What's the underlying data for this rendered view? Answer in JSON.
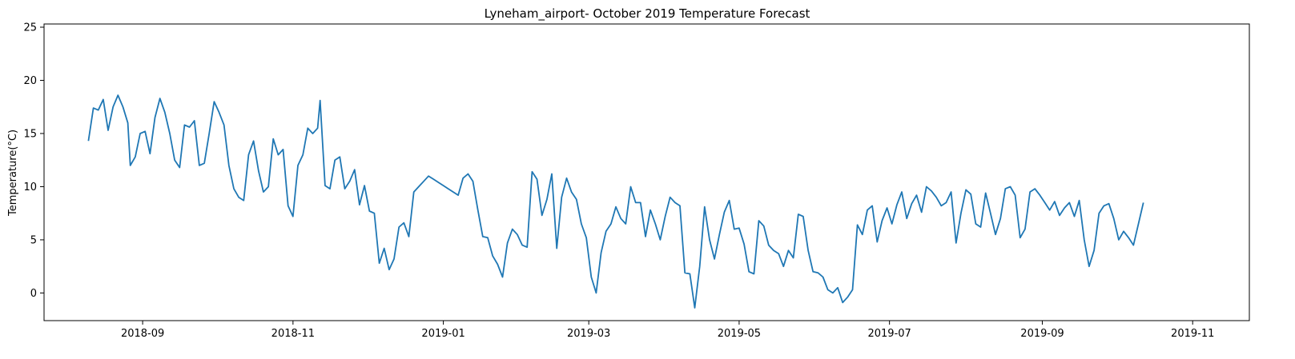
{
  "chart_data": {
    "type": "line",
    "title": "Lyneham_airport- October 2019 Temperature Forecast",
    "xlabel": "",
    "ylabel": "Temperature(°C)",
    "xlim": [
      "2018-07-23",
      "2019-11-24"
    ],
    "ylim": [
      -2.6,
      25.3
    ],
    "grid": false,
    "legend_position": "upper-right",
    "x_ticks": [
      "2018-09",
      "2018-11",
      "2019-01",
      "2019-03",
      "2019-05",
      "2019-07",
      "2019-09",
      "2019-11"
    ],
    "y_ticks": [
      0,
      5,
      10,
      15,
      20,
      25
    ],
    "series": [
      {
        "color": "#1f77b4",
        "points": [
          [
            "2018-08-10",
            14.3
          ],
          [
            "2018-08-12",
            17.4
          ],
          [
            "2018-08-14",
            17.2
          ],
          [
            "2018-08-16",
            18.2
          ],
          [
            "2018-08-18",
            15.3
          ],
          [
            "2018-08-20",
            17.5
          ],
          [
            "2018-08-22",
            18.6
          ],
          [
            "2018-08-24",
            17.5
          ],
          [
            "2018-08-26",
            16.0
          ],
          [
            "2018-08-27",
            12.0
          ],
          [
            "2018-08-29",
            12.8
          ],
          [
            "2018-08-31",
            15.0
          ],
          [
            "2018-09-02",
            15.2
          ],
          [
            "2018-09-04",
            13.1
          ],
          [
            "2018-09-06",
            16.5
          ],
          [
            "2018-09-08",
            18.3
          ],
          [
            "2018-09-10",
            17.0
          ],
          [
            "2018-09-12",
            15.0
          ],
          [
            "2018-09-14",
            12.5
          ],
          [
            "2018-09-16",
            11.8
          ],
          [
            "2018-09-18",
            15.8
          ],
          [
            "2018-09-20",
            15.6
          ],
          [
            "2018-09-22",
            16.2
          ],
          [
            "2018-09-24",
            12.0
          ],
          [
            "2018-09-26",
            12.2
          ],
          [
            "2018-09-28",
            15.0
          ],
          [
            "2018-09-30",
            18.0
          ],
          [
            "2018-10-02",
            17.0
          ],
          [
            "2018-10-04",
            15.8
          ],
          [
            "2018-10-06",
            12.0
          ],
          [
            "2018-10-08",
            9.8
          ],
          [
            "2018-10-10",
            9.0
          ],
          [
            "2018-10-12",
            8.7
          ],
          [
            "2018-10-14",
            13.0
          ],
          [
            "2018-10-16",
            14.3
          ],
          [
            "2018-10-18",
            11.5
          ],
          [
            "2018-10-20",
            9.5
          ],
          [
            "2018-10-22",
            10.0
          ],
          [
            "2018-10-24",
            14.5
          ],
          [
            "2018-10-26",
            13.0
          ],
          [
            "2018-10-28",
            13.5
          ],
          [
            "2018-10-30",
            8.2
          ],
          [
            "2018-11-01",
            7.2
          ],
          [
            "2018-11-03",
            12.0
          ],
          [
            "2018-11-05",
            13.0
          ],
          [
            "2018-11-07",
            15.5
          ],
          [
            "2018-11-09",
            15.0
          ],
          [
            "2018-11-11",
            15.5
          ],
          [
            "2018-11-12",
            18.1
          ],
          [
            "2018-11-14",
            10.1
          ],
          [
            "2018-11-16",
            9.8
          ],
          [
            "2018-11-18",
            12.5
          ],
          [
            "2018-11-20",
            12.8
          ],
          [
            "2018-11-22",
            9.8
          ],
          [
            "2018-11-24",
            10.5
          ],
          [
            "2018-11-26",
            11.6
          ],
          [
            "2018-11-28",
            8.3
          ],
          [
            "2018-11-30",
            10.1
          ],
          [
            "2018-12-02",
            7.7
          ],
          [
            "2018-12-04",
            7.5
          ],
          [
            "2018-12-06",
            2.8
          ],
          [
            "2018-12-08",
            4.2
          ],
          [
            "2018-12-10",
            2.2
          ],
          [
            "2018-12-12",
            3.2
          ],
          [
            "2018-12-14",
            6.2
          ],
          [
            "2018-12-16",
            6.6
          ],
          [
            "2018-12-18",
            5.3
          ],
          [
            "2018-12-20",
            9.5
          ],
          [
            "2018-12-22",
            10.0
          ],
          [
            "2018-12-24",
            10.5
          ],
          [
            "2018-12-26",
            11.0
          ],
          [
            "2018-12-28",
            10.7
          ],
          [
            "2018-12-30",
            10.4
          ],
          [
            "2019-01-01",
            10.1
          ],
          [
            "2019-01-03",
            9.8
          ],
          [
            "2019-01-05",
            9.5
          ],
          [
            "2019-01-07",
            9.2
          ],
          [
            "2019-01-09",
            10.8
          ],
          [
            "2019-01-11",
            11.2
          ],
          [
            "2019-01-13",
            10.5
          ],
          [
            "2019-01-15",
            7.8
          ],
          [
            "2019-01-17",
            5.3
          ],
          [
            "2019-01-19",
            5.2
          ],
          [
            "2019-01-21",
            3.5
          ],
          [
            "2019-01-23",
            2.7
          ],
          [
            "2019-01-25",
            1.5
          ],
          [
            "2019-01-27",
            4.7
          ],
          [
            "2019-01-29",
            6.0
          ],
          [
            "2019-01-31",
            5.5
          ],
          [
            "2019-02-02",
            4.5
          ],
          [
            "2019-02-04",
            4.3
          ],
          [
            "2019-02-06",
            11.4
          ],
          [
            "2019-02-08",
            10.7
          ],
          [
            "2019-02-10",
            7.3
          ],
          [
            "2019-02-12",
            8.8
          ],
          [
            "2019-02-14",
            11.2
          ],
          [
            "2019-02-16",
            4.2
          ],
          [
            "2019-02-18",
            9.0
          ],
          [
            "2019-02-20",
            10.8
          ],
          [
            "2019-02-22",
            9.5
          ],
          [
            "2019-02-24",
            8.8
          ],
          [
            "2019-02-26",
            6.5
          ],
          [
            "2019-02-28",
            5.2
          ],
          [
            "2019-03-02",
            1.5
          ],
          [
            "2019-03-04",
            0.0
          ],
          [
            "2019-03-06",
            3.8
          ],
          [
            "2019-03-08",
            5.8
          ],
          [
            "2019-03-10",
            6.5
          ],
          [
            "2019-03-12",
            8.1
          ],
          [
            "2019-03-14",
            7.0
          ],
          [
            "2019-03-16",
            6.5
          ],
          [
            "2019-03-18",
            10.0
          ],
          [
            "2019-03-20",
            8.5
          ],
          [
            "2019-03-22",
            8.5
          ],
          [
            "2019-03-24",
            5.3
          ],
          [
            "2019-03-26",
            7.8
          ],
          [
            "2019-03-28",
            6.5
          ],
          [
            "2019-03-30",
            5.0
          ],
          [
            "2019-04-01",
            7.2
          ],
          [
            "2019-04-03",
            9.0
          ],
          [
            "2019-04-05",
            8.5
          ],
          [
            "2019-04-07",
            8.2
          ],
          [
            "2019-04-09",
            1.9
          ],
          [
            "2019-04-11",
            1.8
          ],
          [
            "2019-04-13",
            -1.4
          ],
          [
            "2019-04-15",
            2.5
          ],
          [
            "2019-04-17",
            8.1
          ],
          [
            "2019-04-19",
            5.0
          ],
          [
            "2019-04-21",
            3.2
          ],
          [
            "2019-04-23",
            5.5
          ],
          [
            "2019-04-25",
            7.6
          ],
          [
            "2019-04-27",
            8.7
          ],
          [
            "2019-04-29",
            6.0
          ],
          [
            "2019-05-01",
            6.1
          ],
          [
            "2019-05-03",
            4.6
          ],
          [
            "2019-05-05",
            2.0
          ],
          [
            "2019-05-07",
            1.8
          ],
          [
            "2019-05-09",
            6.8
          ],
          [
            "2019-05-11",
            6.3
          ],
          [
            "2019-05-13",
            4.5
          ],
          [
            "2019-05-15",
            4.0
          ],
          [
            "2019-05-17",
            3.7
          ],
          [
            "2019-05-19",
            2.5
          ],
          [
            "2019-05-21",
            4.0
          ],
          [
            "2019-05-23",
            3.3
          ],
          [
            "2019-05-25",
            7.4
          ],
          [
            "2019-05-27",
            7.2
          ],
          [
            "2019-05-29",
            4.0
          ],
          [
            "2019-05-31",
            2.0
          ],
          [
            "2019-06-02",
            1.9
          ],
          [
            "2019-06-04",
            1.5
          ],
          [
            "2019-06-06",
            0.3
          ],
          [
            "2019-06-08",
            0.0
          ],
          [
            "2019-06-10",
            0.5
          ],
          [
            "2019-06-12",
            -0.9
          ],
          [
            "2019-06-14",
            -0.4
          ],
          [
            "2019-06-16",
            0.3
          ],
          [
            "2019-06-18",
            6.4
          ],
          [
            "2019-06-20",
            5.5
          ],
          [
            "2019-06-22",
            7.8
          ],
          [
            "2019-06-24",
            8.2
          ],
          [
            "2019-06-26",
            4.8
          ],
          [
            "2019-06-28",
            6.8
          ],
          [
            "2019-06-30",
            8.0
          ],
          [
            "2019-07-02",
            6.5
          ],
          [
            "2019-07-04",
            8.3
          ],
          [
            "2019-07-06",
            9.5
          ],
          [
            "2019-07-08",
            7.0
          ],
          [
            "2019-07-10",
            8.4
          ],
          [
            "2019-07-12",
            9.2
          ],
          [
            "2019-07-14",
            7.6
          ],
          [
            "2019-07-16",
            10.0
          ],
          [
            "2019-07-18",
            9.6
          ],
          [
            "2019-07-20",
            9.0
          ],
          [
            "2019-07-22",
            8.2
          ],
          [
            "2019-07-24",
            8.5
          ],
          [
            "2019-07-26",
            9.5
          ],
          [
            "2019-07-28",
            4.7
          ],
          [
            "2019-07-30",
            7.5
          ],
          [
            "2019-08-01",
            9.7
          ],
          [
            "2019-08-03",
            9.3
          ],
          [
            "2019-08-05",
            6.5
          ],
          [
            "2019-08-07",
            6.2
          ],
          [
            "2019-08-09",
            9.4
          ],
          [
            "2019-08-11",
            7.5
          ],
          [
            "2019-08-13",
            5.5
          ],
          [
            "2019-08-15",
            7.0
          ],
          [
            "2019-08-17",
            9.8
          ],
          [
            "2019-08-19",
            10.0
          ],
          [
            "2019-08-21",
            9.2
          ],
          [
            "2019-08-23",
            5.2
          ],
          [
            "2019-08-25",
            6.0
          ],
          [
            "2019-08-27",
            9.5
          ],
          [
            "2019-08-29",
            9.8
          ],
          [
            "2019-08-31",
            9.2
          ],
          [
            "2019-09-02",
            8.5
          ],
          [
            "2019-09-04",
            7.8
          ],
          [
            "2019-09-06",
            8.6
          ],
          [
            "2019-09-08",
            7.3
          ],
          [
            "2019-09-10",
            8.0
          ],
          [
            "2019-09-12",
            8.5
          ],
          [
            "2019-09-14",
            7.2
          ],
          [
            "2019-09-16",
            8.7
          ],
          [
            "2019-09-18",
            5.0
          ],
          [
            "2019-09-20",
            2.5
          ],
          [
            "2019-09-22",
            4.0
          ],
          [
            "2019-09-24",
            7.5
          ],
          [
            "2019-09-26",
            8.2
          ],
          [
            "2019-09-28",
            8.4
          ],
          [
            "2019-09-30",
            7.0
          ],
          [
            "2019-10-02",
            5.0
          ],
          [
            "2019-10-04",
            5.8
          ],
          [
            "2019-10-06",
            5.2
          ],
          [
            "2019-10-08",
            4.5
          ],
          [
            "2019-10-10",
            6.5
          ],
          [
            "2019-10-12",
            8.5
          ]
        ],
        "_note": ""
      }
    ]
  }
}
